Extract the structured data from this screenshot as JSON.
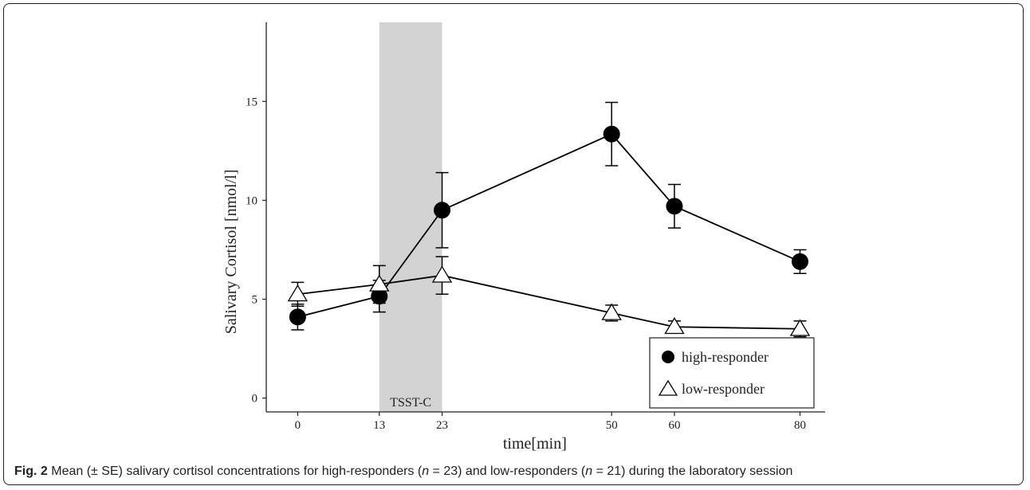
{
  "figure": {
    "caption_label": "Fig. 2",
    "caption_parts": [
      "Mean (± SE) salivary cortisol concentrations for high-responders (",
      "n",
      " = 23) and low-responders (",
      "n",
      " = 21) during the laboratory session"
    ]
  },
  "chart_data": {
    "type": "line",
    "title": "",
    "xlabel": "time[min]",
    "ylabel": "Salivary Cortisol [nmol/l]",
    "x": [
      0,
      13,
      23,
      50,
      60,
      80
    ],
    "x_ticks": [
      "0",
      "13",
      "23",
      "50",
      "60",
      "80"
    ],
    "y_ticks": [
      "0",
      "5",
      "10",
      "15"
    ],
    "xlim": [
      -5,
      84
    ],
    "ylim": [
      -0.7,
      19
    ],
    "grid": false,
    "shaded_region": {
      "from": 13,
      "to": 23,
      "label": "TSST-C",
      "color": "#d3d3d3"
    },
    "series": [
      {
        "name": "high-responder",
        "marker": "filled-circle",
        "color": "#000000",
        "values": [
          4.1,
          5.15,
          9.5,
          13.35,
          9.7,
          6.9
        ],
        "se": [
          0.65,
          0.8,
          1.9,
          1.6,
          1.1,
          0.6
        ]
      },
      {
        "name": "low-responder",
        "marker": "open-triangle",
        "color": "#000000",
        "values": [
          5.25,
          5.75,
          6.2,
          4.3,
          3.6,
          3.5
        ],
        "se": [
          0.6,
          0.95,
          0.95,
          0.4,
          0.3,
          0.4
        ]
      }
    ],
    "legend_position": "bottom-right"
  }
}
